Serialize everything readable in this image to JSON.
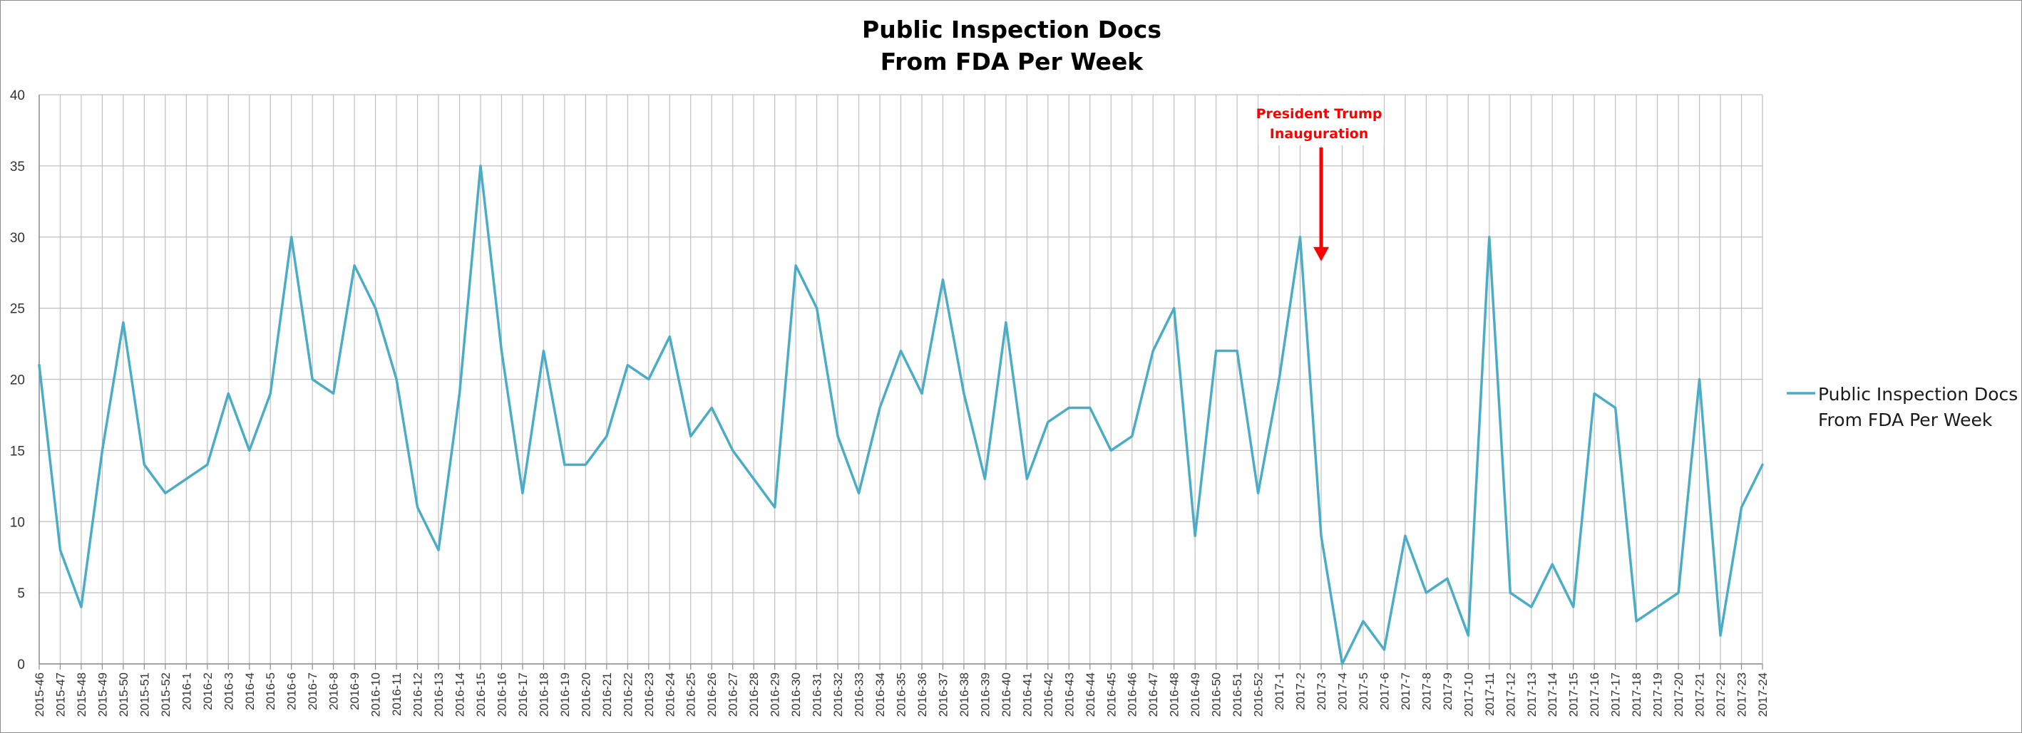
{
  "chart_data": {
    "type": "line",
    "title_lines": [
      "Public Inspection Docs",
      "From FDA Per Week"
    ],
    "ylim": [
      0,
      40
    ],
    "yticks": [
      0,
      5,
      10,
      15,
      20,
      25,
      30,
      35,
      40
    ],
    "grid": true,
    "legend_position": "right",
    "categories": [
      "2015-46",
      "2015-47",
      "2015-48",
      "2015-49",
      "2015-50",
      "2015-51",
      "2015-52",
      "2016-1",
      "2016-2",
      "2016-3",
      "2016-4",
      "2016-5",
      "2016-6",
      "2016-7",
      "2016-8",
      "2016-9",
      "2016-10",
      "2016-11",
      "2016-12",
      "2016-13",
      "2016-14",
      "2016-15",
      "2016-16",
      "2016-17",
      "2016-18",
      "2016-19",
      "2016-20",
      "2016-21",
      "2016-22",
      "2016-23",
      "2016-24",
      "2016-25",
      "2016-26",
      "2016-27",
      "2016-28",
      "2016-29",
      "2016-30",
      "2016-31",
      "2016-32",
      "2016-33",
      "2016-34",
      "2016-35",
      "2016-36",
      "2016-37",
      "2016-38",
      "2016-39",
      "2016-40",
      "2016-41",
      "2016-42",
      "2016-43",
      "2016-44",
      "2016-45",
      "2016-46",
      "2016-47",
      "2016-48",
      "2016-49",
      "2016-50",
      "2016-51",
      "2016-52",
      "2017-1",
      "2017-2",
      "2017-3",
      "2017-4",
      "2017-5",
      "2017-6",
      "2017-7",
      "2017-8",
      "2017-9",
      "2017-10",
      "2017-11",
      "2017-12",
      "2017-13",
      "2017-14",
      "2017-15",
      "2017-16",
      "2017-17",
      "2017-18",
      "2017-19",
      "2017-20",
      "2017-21",
      "2017-22",
      "2017-23",
      "2017-24"
    ],
    "series": [
      {
        "name_lines": [
          "Public Inspection Docs",
          "From FDA Per Week"
        ],
        "color": "#4bacc6",
        "values": [
          21,
          8,
          4,
          15,
          24,
          14,
          12,
          13,
          14,
          19,
          15,
          19,
          30,
          20,
          19,
          28,
          25,
          20,
          11,
          8,
          19,
          35,
          22,
          12,
          22,
          14,
          14,
          16,
          21,
          20,
          23,
          16,
          18,
          15,
          13,
          11,
          28,
          25,
          16,
          12,
          18,
          22,
          19,
          27,
          19,
          13,
          24,
          13,
          17,
          18,
          18,
          15,
          16,
          22,
          25,
          9,
          22,
          22,
          12,
          20,
          30,
          9,
          0,
          3,
          1,
          9,
          5,
          6,
          2,
          30,
          5,
          4,
          7,
          4,
          19,
          18,
          3,
          4,
          5,
          20,
          2,
          11,
          14
        ]
      }
    ],
    "annotations": [
      {
        "lines": [
          "President Trump",
          "Inauguration"
        ],
        "color": "#ff0000",
        "category": "2017-3",
        "arrow_tip_value": 28.5
      }
    ]
  }
}
